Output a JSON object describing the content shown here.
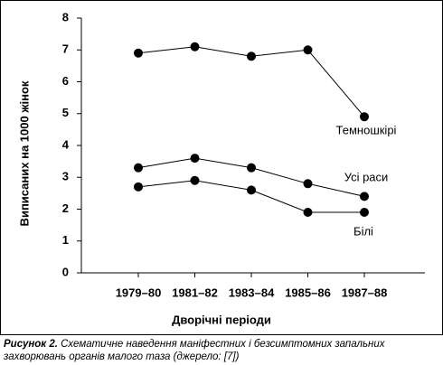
{
  "chart_data": {
    "type": "line",
    "x_label": "Дворічні періоди",
    "y_label": "Виписаних на 1000 жінок",
    "categories": [
      "1979–80",
      "1981–82",
      "1983–84",
      "1985–86",
      "1987–88"
    ],
    "series": [
      {
        "name": "Темношкірі",
        "color": "#000000",
        "values": [
          6.9,
          7.1,
          6.8,
          7.0,
          4.9
        ]
      },
      {
        "name": "Усі раси",
        "color": "#000000",
        "values": [
          3.3,
          3.6,
          3.3,
          2.8,
          2.4
        ]
      },
      {
        "name": "Білі",
        "color": "#000000",
        "values": [
          2.7,
          2.9,
          2.6,
          1.9,
          1.9
        ]
      }
    ],
    "ylim": [
      0,
      8
    ],
    "yticks": [
      0,
      1,
      2,
      3,
      4,
      5,
      6,
      7,
      8
    ],
    "grid": false
  },
  "caption": {
    "label": "Рисунок 2.",
    "text": "Схематичне наведення маніфестних і безсимптомних запальних захворювань органів малого таза (джерело: [7])"
  }
}
